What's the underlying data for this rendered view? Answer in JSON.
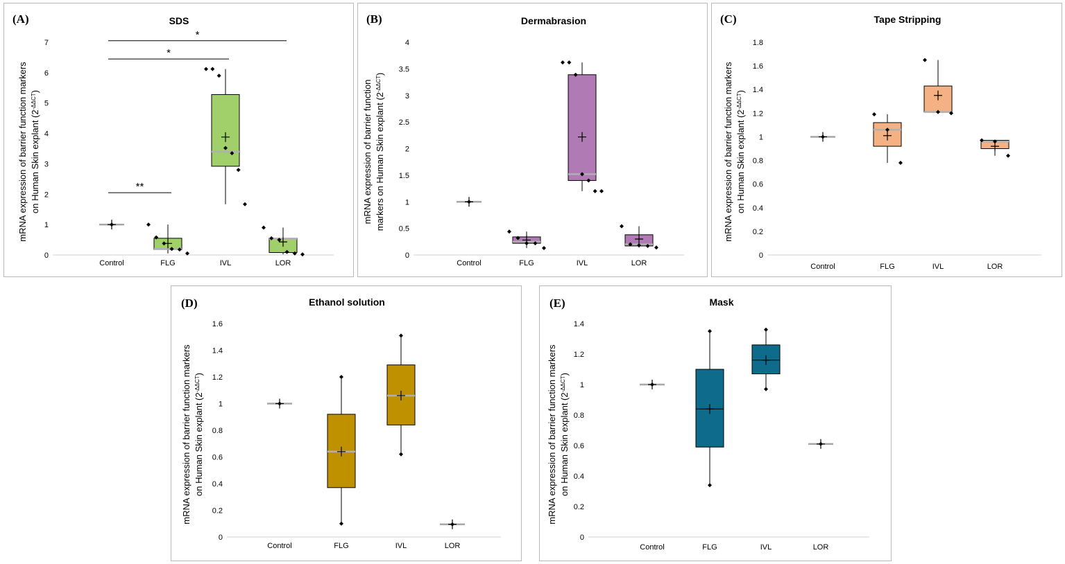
{
  "figure": {
    "charts": [
      {
        "label": "(A)",
        "title": "SDS"
      },
      {
        "label": "(B)",
        "title": "Dermabrasion"
      },
      {
        "label": "(C)",
        "title": "Tape Stripping"
      },
      {
        "label": "(D)",
        "title": "Ethanol solution"
      },
      {
        "label": "(E)",
        "title": "Mask"
      }
    ]
  },
  "chart_data": [
    {
      "id": "A",
      "type": "box",
      "title": "SDS",
      "panel_label": "(A)",
      "ylabel_line1": "mRNA expression of barrier function markers",
      "ylabel_line2": "on Human Skin explant (2",
      "ylabel_sup": "-ΔΔCT",
      "ylabel_close": ")",
      "categories": [
        "Control",
        "FLG",
        "IVL",
        "LOR"
      ],
      "ylim": [
        0,
        7
      ],
      "yticks": [
        0,
        1,
        2,
        3,
        4,
        5,
        6,
        7
      ],
      "yticklabels": [
        "0",
        "1",
        "2",
        "3",
        "4",
        "5",
        "6",
        "7"
      ],
      "color": "#a1d06b",
      "boxes": [
        {
          "category": "Control",
          "min": 1.0,
          "q1": 1.0,
          "median": 1.0,
          "q3": 1.0,
          "max": 1.0,
          "mean": 1.0,
          "points": [
            1.0
          ]
        },
        {
          "category": "FLG",
          "min": 0.05,
          "q1": 0.18,
          "median": 0.2,
          "q3": 0.55,
          "max": 1.0,
          "mean": 0.38,
          "points": [
            1.0,
            0.58,
            0.38,
            0.2,
            0.18,
            0.05
          ]
        },
        {
          "category": "IVL",
          "min": 1.67,
          "q1": 2.92,
          "median": 3.4,
          "q3": 5.28,
          "max": 6.12,
          "mean": 3.88,
          "points": [
            6.12,
            6.12,
            5.9,
            3.52,
            3.35,
            2.8,
            1.67
          ]
        },
        {
          "category": "LOR",
          "min": 0.02,
          "q1": 0.08,
          "median": 0.53,
          "q3": 0.55,
          "max": 0.9,
          "mean": 0.43,
          "points": [
            0.9,
            0.55,
            0.5,
            0.1,
            0.05,
            0.02
          ]
        }
      ],
      "significance": [
        {
          "from": "Control",
          "to": "FLG",
          "y": 2.05,
          "label": "**"
        },
        {
          "from": "Control",
          "to": "IVL",
          "y": 6.45,
          "label": "*"
        },
        {
          "from": "Control",
          "to": "LOR",
          "y": 7.05,
          "label": "*"
        }
      ]
    },
    {
      "id": "B",
      "type": "box",
      "title": "Dermabrasion",
      "panel_label": "(B)",
      "ylabel_line1": "mRNA expression of barrier function",
      "ylabel_line2": "markers on Human Skin explant (2",
      "ylabel_sup": "-ΔΔCT",
      "ylabel_close": ")",
      "categories": [
        "Control",
        "FLG",
        "IVL",
        "LOR"
      ],
      "ylim": [
        0,
        4
      ],
      "yticks": [
        0,
        0.5,
        1,
        1.5,
        2,
        2.5,
        3,
        3.5,
        4
      ],
      "yticklabels": [
        "0",
        "0.5",
        "1",
        "1.5",
        "2",
        "2.5",
        "3",
        "3.5",
        "4"
      ],
      "color": "#b07ab4",
      "boxes": [
        {
          "category": "Control",
          "min": 1.0,
          "q1": 1.0,
          "median": 1.0,
          "q3": 1.0,
          "max": 1.0,
          "mean": 1.0,
          "points": [
            1.0
          ]
        },
        {
          "category": "FLG",
          "min": 0.13,
          "q1": 0.22,
          "median": 0.25,
          "q3": 0.34,
          "max": 0.44,
          "mean": 0.28,
          "points": [
            0.44,
            0.32,
            0.22,
            0.22,
            0.13
          ]
        },
        {
          "category": "IVL",
          "min": 1.2,
          "q1": 1.4,
          "median": 1.52,
          "q3": 3.39,
          "max": 3.62,
          "mean": 2.22,
          "points": [
            3.62,
            3.62,
            3.39,
            1.52,
            1.4,
            1.2,
            1.2
          ]
        },
        {
          "category": "LOR",
          "min": 0.14,
          "q1": 0.17,
          "median": 0.2,
          "q3": 0.38,
          "max": 0.54,
          "mean": 0.3,
          "points": [
            0.54,
            0.2,
            0.18,
            0.17,
            0.14
          ]
        }
      ],
      "significance": []
    },
    {
      "id": "C",
      "type": "box",
      "title": "Tape Stripping",
      "panel_label": "(C)",
      "ylabel_line1": "mRNA expression of barrier function markers",
      "ylabel_line2": "on Human Skin explant (2",
      "ylabel_sup": "-ΔΔCT",
      "ylabel_close": ")",
      "categories": [
        "Control",
        "FLG",
        "IVL",
        "LOR"
      ],
      "ylim": [
        0,
        1.8
      ],
      "yticks": [
        0,
        0.2,
        0.4,
        0.6,
        0.8,
        1,
        1.2,
        1.4,
        1.6,
        1.8
      ],
      "yticklabels": [
        "0",
        "0.2",
        "0.4",
        "0.6",
        "0.8",
        "1",
        "1.2",
        "1.4",
        "1.6",
        "1.8"
      ],
      "color": "#f4b183",
      "boxes": [
        {
          "category": "Control",
          "min": 1.0,
          "q1": 1.0,
          "median": 1.0,
          "q3": 1.0,
          "max": 1.0,
          "mean": 1.0,
          "points": [
            1.0
          ]
        },
        {
          "category": "FLG",
          "min": 0.78,
          "q1": 0.92,
          "median": 1.06,
          "q3": 1.12,
          "max": 1.19,
          "mean": 1.01,
          "points": [
            1.19,
            1.06,
            0.78
          ]
        },
        {
          "category": "IVL",
          "min": 1.2,
          "q1": 1.21,
          "median": 1.21,
          "q3": 1.43,
          "max": 1.65,
          "mean": 1.35,
          "points": [
            1.65,
            1.21,
            1.2
          ]
        },
        {
          "category": "LOR",
          "min": 0.84,
          "q1": 0.9,
          "median": 0.96,
          "q3": 0.97,
          "max": 0.97,
          "mean": 0.92,
          "points": [
            0.97,
            0.96,
            0.84
          ]
        }
      ],
      "significance": []
    },
    {
      "id": "D",
      "type": "box",
      "title": "Ethanol solution",
      "panel_label": "(D)",
      "ylabel_line1": "mRNA expression of barrier function markers",
      "ylabel_line2": "on Human Skin explant (2",
      "ylabel_sup": "-ΔΔCT",
      "ylabel_close": ")",
      "categories": [
        "Control",
        "FLG",
        "IVL",
        "LOR"
      ],
      "ylim": [
        0,
        1.6
      ],
      "yticks": [
        0,
        0.2,
        0.4,
        0.6,
        0.8,
        1,
        1.2,
        1.4,
        1.6
      ],
      "yticklabels": [
        "0",
        "0.2",
        "0.4",
        "0.6",
        "0.8",
        "1",
        "1.2",
        "1.4",
        "1.6"
      ],
      "color": "#bf9000",
      "boxes": [
        {
          "category": "Control",
          "min": 1.0,
          "q1": 1.0,
          "median": 1.0,
          "q3": 1.0,
          "max": 1.0,
          "mean": 1.0,
          "points": [
            1.0
          ]
        },
        {
          "category": "FLG",
          "min": 0.1,
          "q1": 0.37,
          "median": 0.64,
          "q3": 0.92,
          "max": 1.2,
          "mean": 0.64,
          "points": [
            1.2,
            0.1
          ]
        },
        {
          "category": "IVL",
          "min": 0.62,
          "q1": 0.84,
          "median": 1.06,
          "q3": 1.29,
          "max": 1.51,
          "mean": 1.06,
          "points": [
            1.51,
            0.62
          ]
        },
        {
          "category": "LOR",
          "min": 0.095,
          "q1": 0.095,
          "median": 0.095,
          "q3": 0.095,
          "max": 0.095,
          "mean": 0.095,
          "points": [
            0.095
          ]
        }
      ],
      "significance": []
    },
    {
      "id": "E",
      "type": "box",
      "title": "Mask",
      "panel_label": "(E)",
      "ylabel_line1": "mRNA expression of barrier function markers",
      "ylabel_line2": "on Human Skin explant (2",
      "ylabel_sup": "-ΔΔCT",
      "ylabel_close": ")",
      "categories": [
        "Control",
        "FLG",
        "IVL",
        "LOR"
      ],
      "ylim": [
        0,
        1.4
      ],
      "yticks": [
        0,
        0.2,
        0.4,
        0.6,
        0.8,
        1,
        1.2,
        1.4
      ],
      "yticklabels": [
        "0",
        "0.2",
        "0.4",
        "0.6",
        "0.8",
        "1",
        "1.2",
        "1.4"
      ],
      "color": "#0f6b8c",
      "boxes": [
        {
          "category": "Control",
          "min": 1.0,
          "q1": 1.0,
          "median": 1.0,
          "q3": 1.0,
          "max": 1.0,
          "mean": 1.0,
          "points": [
            1.0
          ]
        },
        {
          "category": "FLG",
          "min": 0.34,
          "q1": 0.59,
          "median": 0.84,
          "q3": 1.1,
          "max": 1.35,
          "mean": 0.84,
          "points": [
            1.35,
            0.34
          ]
        },
        {
          "category": "IVL",
          "min": 0.97,
          "q1": 1.07,
          "median": 1.16,
          "q3": 1.26,
          "max": 1.36,
          "mean": 1.16,
          "points": [
            1.36,
            0.97
          ]
        },
        {
          "category": "LOR",
          "min": 0.61,
          "q1": 0.61,
          "median": 0.61,
          "q3": 0.61,
          "max": 0.61,
          "mean": 0.61,
          "points": [
            0.61
          ]
        }
      ],
      "significance": []
    }
  ]
}
